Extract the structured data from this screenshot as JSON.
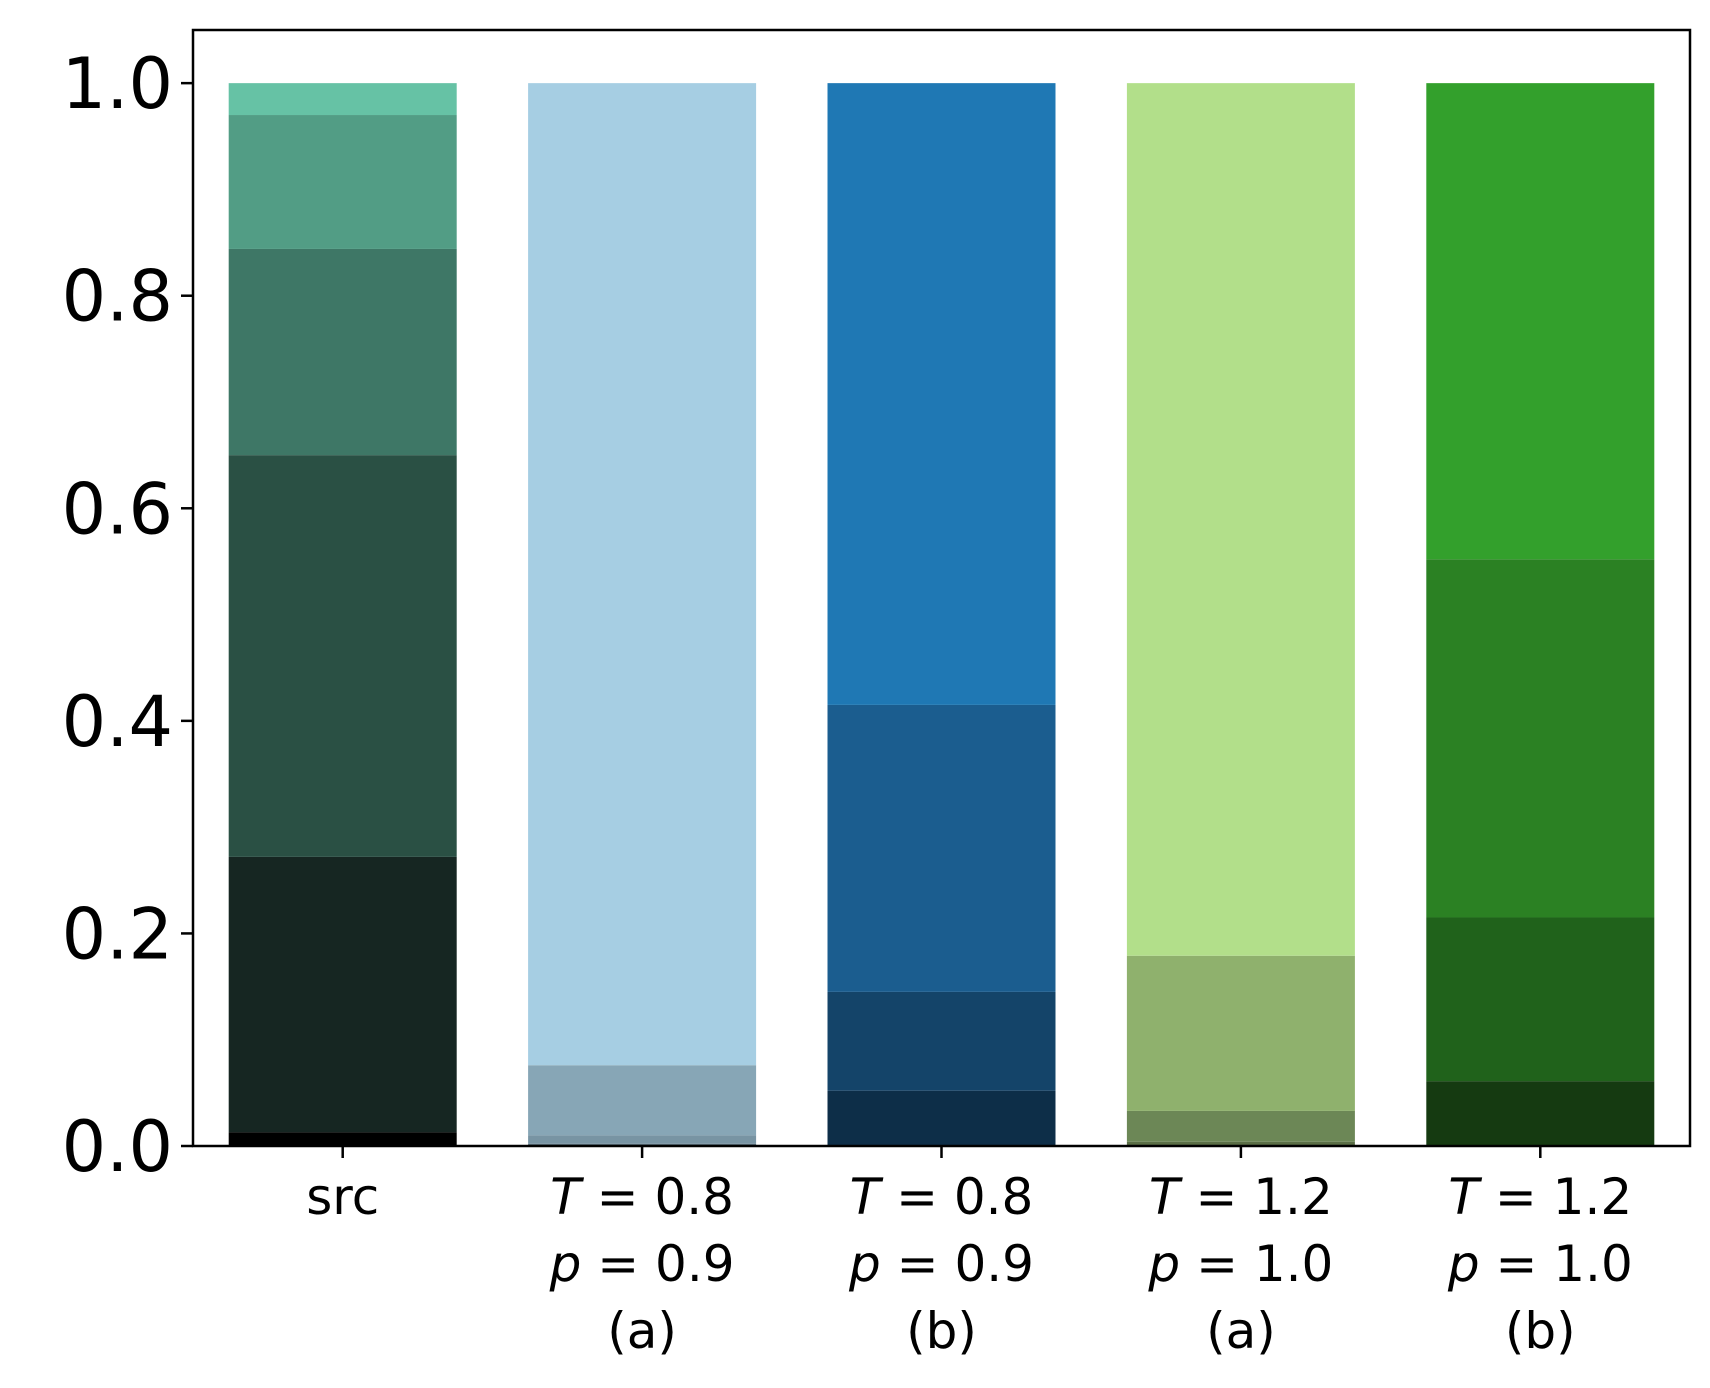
{
  "chart_data": {
    "type": "bar",
    "stacked": true,
    "ylim": [
      0,
      1.05
    ],
    "yticks": [
      "0.0",
      "0.2",
      "0.4",
      "0.6",
      "0.8",
      "1.0"
    ],
    "grid": false,
    "categories": [
      {
        "lines": [
          {
            "parts": [
              {
                "text": "src",
                "italic": false
              }
            ]
          }
        ]
      },
      {
        "lines": [
          {
            "parts": [
              {
                "text": "T",
                "italic": true
              },
              {
                "text": " = 0.8",
                "italic": false
              }
            ]
          },
          {
            "parts": [
              {
                "text": "p",
                "italic": true
              },
              {
                "text": " = 0.9",
                "italic": false
              }
            ]
          },
          {
            "parts": [
              {
                "text": "(a)",
                "italic": false
              }
            ]
          }
        ]
      },
      {
        "lines": [
          {
            "parts": [
              {
                "text": "T",
                "italic": true
              },
              {
                "text": " = 0.8",
                "italic": false
              }
            ]
          },
          {
            "parts": [
              {
                "text": "p",
                "italic": true
              },
              {
                "text": " = 0.9",
                "italic": false
              }
            ]
          },
          {
            "parts": [
              {
                "text": "(b)",
                "italic": false
              }
            ]
          }
        ]
      },
      {
        "lines": [
          {
            "parts": [
              {
                "text": "T",
                "italic": true
              },
              {
                "text": " = 1.2",
                "italic": false
              }
            ]
          },
          {
            "parts": [
              {
                "text": "p",
                "italic": true
              },
              {
                "text": " = 1.0",
                "italic": false
              }
            ]
          },
          {
            "parts": [
              {
                "text": "(a)",
                "italic": false
              }
            ]
          }
        ]
      },
      {
        "lines": [
          {
            "parts": [
              {
                "text": "T",
                "italic": true
              },
              {
                "text": " = 1.2",
                "italic": false
              }
            ]
          },
          {
            "parts": [
              {
                "text": "p",
                "italic": true
              },
              {
                "text": " = 1.0",
                "italic": false
              }
            ]
          },
          {
            "parts": [
              {
                "text": "(b)",
                "italic": false
              }
            ]
          }
        ]
      }
    ],
    "stacks": [
      {
        "segments": [
          {
            "value": 0.013,
            "color": "#000000"
          },
          {
            "value": 0.259,
            "color": "#162622"
          },
          {
            "value": 0.378,
            "color": "#2a5044"
          },
          {
            "value": 0.194,
            "color": "#3e7766"
          },
          {
            "value": 0.126,
            "color": "#529d85"
          },
          {
            "value": 0.03,
            "color": "#66c2a5"
          }
        ]
      },
      {
        "segments": [
          {
            "value": 0.002,
            "color": "#5d727f"
          },
          {
            "value": 0.008,
            "color": "#7894a3"
          },
          {
            "value": 0.066,
            "color": "#87a6b6"
          },
          {
            "value": 0.924,
            "color": "#a6cee3"
          }
        ]
      },
      {
        "segments": [
          {
            "value": 0.052,
            "color": "#0d2e48"
          },
          {
            "value": 0.093,
            "color": "#144469"
          },
          {
            "value": 0.27,
            "color": "#1b5d8f"
          },
          {
            "value": 0.585,
            "color": "#1f78b4"
          }
        ]
      },
      {
        "segments": [
          {
            "value": 0.004,
            "color": "#5a6e46"
          },
          {
            "value": 0.029,
            "color": "#6c8756"
          },
          {
            "value": 0.146,
            "color": "#8fb16d"
          },
          {
            "value": 0.821,
            "color": "#b2df8a"
          }
        ]
      },
      {
        "segments": [
          {
            "value": 0.061,
            "color": "#153a11"
          },
          {
            "value": 0.154,
            "color": "#20621b"
          },
          {
            "value": 0.337,
            "color": "#2b8123"
          },
          {
            "value": 0.448,
            "color": "#33a02c"
          }
        ]
      }
    ]
  }
}
